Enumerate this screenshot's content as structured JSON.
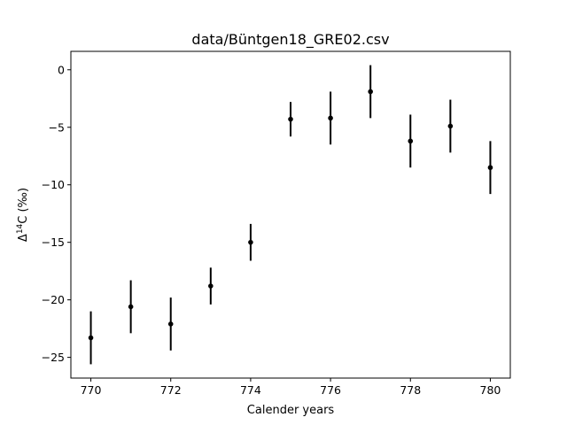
{
  "chart_data": {
    "type": "scatter",
    "title": "data/Büntgen18_GRE02.csv",
    "xlabel": "Calender years",
    "ylabel": {
      "prefix": "Δ",
      "superscript": "14",
      "suffix": "C (‰)"
    },
    "xlim": [
      769.5,
      780.5
    ],
    "ylim": [
      -26.8,
      1.6
    ],
    "xticks": [
      770,
      772,
      774,
      776,
      778,
      780
    ],
    "yticks": [
      0,
      -5,
      -10,
      -15,
      -20,
      -25
    ],
    "xtick_labels": [
      "770",
      "772",
      "774",
      "776",
      "778",
      "780"
    ],
    "ytick_labels": [
      "0",
      "−5",
      "−10",
      "−15",
      "−20",
      "−25"
    ],
    "grid": false,
    "marker_color": "#000000",
    "series": [
      {
        "x": [
          770,
          771,
          772,
          773,
          774,
          775,
          776,
          777,
          778,
          779,
          780
        ],
        "y": [
          -23.3,
          -20.6,
          -22.1,
          -18.8,
          -15.0,
          -4.3,
          -4.2,
          -1.9,
          -6.2,
          -4.9,
          -8.5
        ],
        "yerr": [
          2.3,
          2.3,
          2.3,
          1.6,
          1.6,
          1.5,
          2.3,
          2.3,
          2.3,
          2.3,
          2.3
        ]
      }
    ]
  }
}
